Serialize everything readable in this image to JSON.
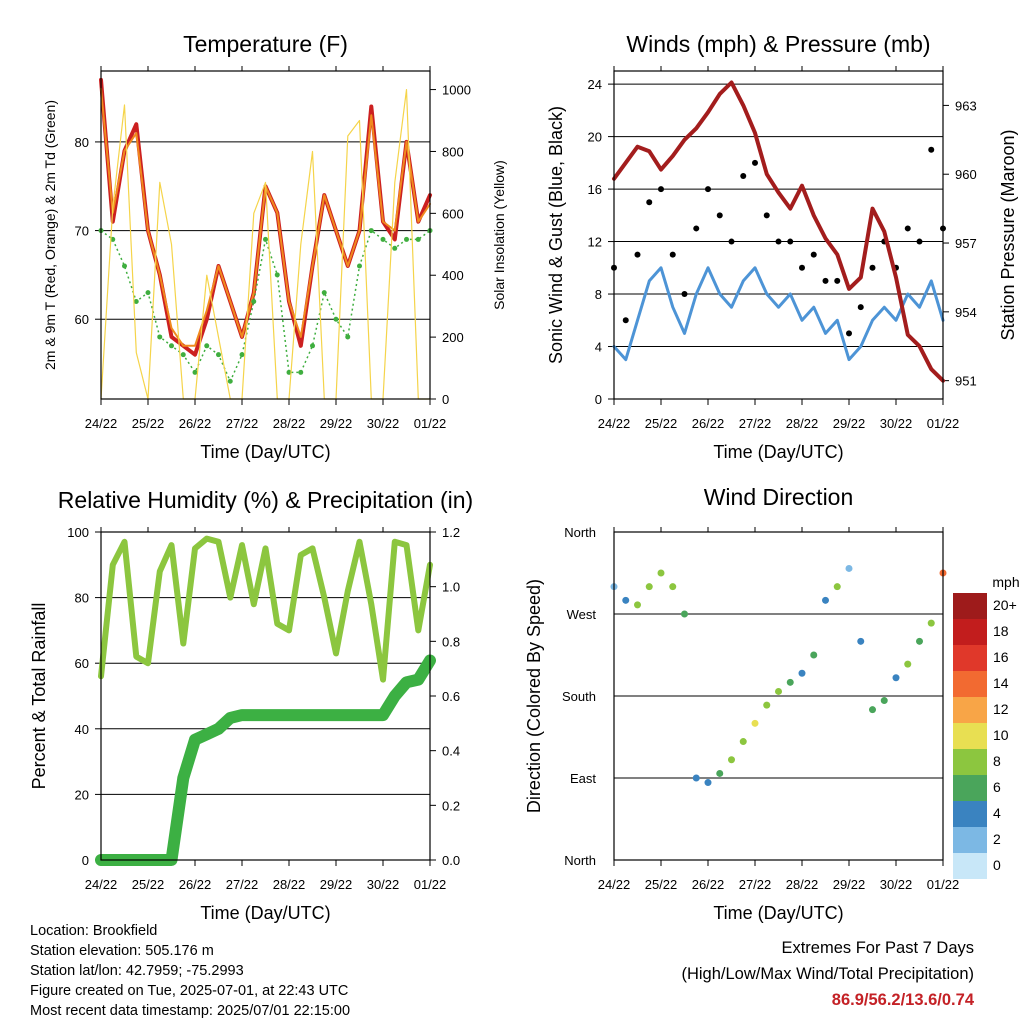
{
  "x_ticks": [
    "24/22",
    "25/22",
    "26/22",
    "27/22",
    "28/22",
    "29/22",
    "30/22",
    "01/22"
  ],
  "x_label": "Time (Day/UTC)",
  "chart_data": [
    {
      "type": "line",
      "title": "Temperature (F)",
      "xlabel": "Time (Day/UTC)",
      "ylabel": "2m & 9m T (Red, Orange) & 2m Td (Green)",
      "ylabel_right": "Solar Insolation (Yellow)",
      "ylim": [
        51,
        88
      ],
      "ylim_right": [
        0,
        1060
      ],
      "yticks": [
        60,
        70,
        80
      ],
      "yticks_right": [
        0,
        200,
        400,
        600,
        800,
        1000
      ],
      "x": [
        0,
        0.25,
        0.5,
        0.75,
        1,
        1.25,
        1.5,
        1.75,
        2,
        2.25,
        2.5,
        2.75,
        3,
        3.25,
        3.5,
        3.75,
        4,
        4.25,
        4.5,
        4.75,
        5,
        5.25,
        5.5,
        5.75,
        6,
        6.25,
        6.5,
        6.75,
        7
      ],
      "series": [
        {
          "name": "2m T",
          "color": "#cc2020",
          "values": [
            87,
            71,
            79,
            82,
            70,
            65,
            58,
            57,
            56,
            60,
            66,
            62,
            58,
            63,
            75,
            72,
            62,
            57,
            66,
            74,
            70,
            66,
            70,
            84,
            71,
            69,
            80,
            71,
            74
          ]
        },
        {
          "name": "9m T",
          "color": "#f08a1e",
          "values": [
            86,
            72,
            79,
            81,
            70,
            65,
            59,
            57,
            57,
            61,
            66,
            62,
            58,
            63,
            75,
            72,
            62,
            58,
            66,
            74,
            70,
            66,
            70,
            83,
            71,
            70,
            80,
            71,
            73
          ]
        },
        {
          "name": "2m Td",
          "color": "#3fae3f",
          "values": [
            70,
            69,
            66,
            62,
            63,
            58,
            57,
            56,
            54,
            57,
            56,
            53,
            56,
            62,
            69,
            65,
            54,
            54,
            57,
            63,
            60,
            58,
            66,
            70,
            69,
            68,
            69,
            69,
            70
          ]
        },
        {
          "name": "Solar Insolation",
          "axis": "right",
          "color": "#f5d44a",
          "values": [
            0,
            620,
            950,
            150,
            0,
            700,
            500,
            0,
            0,
            400,
            200,
            0,
            0,
            600,
            700,
            0,
            0,
            500,
            800,
            0,
            0,
            850,
            900,
            0,
            0,
            700,
            1000,
            0,
            0
          ]
        }
      ]
    },
    {
      "type": "line",
      "title": "Winds (mph) & Pressure (mb)",
      "xlabel": "Time (Day/UTC)",
      "ylabel": "Sonic Wind & Gust (Blue, Black)",
      "ylabel_right": "Station Pressure (Maroon)",
      "ylim": [
        0,
        25
      ],
      "ylim_right": [
        950.2,
        964.5
      ],
      "yticks": [
        0,
        4,
        8,
        12,
        16,
        20,
        24
      ],
      "yticks_right": [
        951,
        954,
        957,
        960,
        963
      ],
      "x": [
        0,
        0.25,
        0.5,
        0.75,
        1,
        1.25,
        1.5,
        1.75,
        2,
        2.25,
        2.5,
        2.75,
        3,
        3.25,
        3.5,
        3.75,
        4,
        4.25,
        4.5,
        4.75,
        5,
        5.25,
        5.5,
        5.75,
        6,
        6.25,
        6.5,
        6.75,
        7
      ],
      "series": [
        {
          "name": "Wind",
          "color": "#4d94d6",
          "values": [
            4,
            3,
            6,
            9,
            10,
            7,
            5,
            8,
            10,
            8,
            7,
            9,
            10,
            8,
            7,
            8,
            6,
            7,
            5,
            6,
            3,
            4,
            6,
            7,
            6,
            8,
            7,
            9,
            6
          ]
        },
        {
          "name": "Gust",
          "color": "#000000",
          "values": [
            10,
            6,
            11,
            15,
            16,
            11,
            8,
            13,
            16,
            14,
            12,
            17,
            18,
            14,
            12,
            12,
            10,
            11,
            9,
            9,
            5,
            7,
            10,
            12,
            10,
            13,
            12,
            19,
            13
          ]
        },
        {
          "name": "Station Pressure",
          "axis": "right",
          "color": "#a31d1d",
          "values": [
            959.8,
            960.5,
            961.2,
            961,
            960.2,
            960.8,
            961.5,
            962,
            962.7,
            963.5,
            964,
            963,
            961.8,
            960,
            959.2,
            958.5,
            959.5,
            958.2,
            957.2,
            956.5,
            955,
            955.5,
            958.5,
            957.5,
            955.5,
            953,
            952.5,
            951.5,
            951
          ]
        }
      ]
    },
    {
      "type": "line",
      "title": "Relative Humidity (%) & Precipitation (in)",
      "xlabel": "Time (Day/UTC)",
      "ylabel": "Percent & Total Rainfall",
      "ylim": [
        0,
        100
      ],
      "ylim_right": [
        0,
        1.2
      ],
      "yticks": [
        0,
        20,
        40,
        60,
        80,
        100
      ],
      "yticks_right": [
        "0.0",
        "0.2",
        "0.4",
        "0.6",
        "0.8",
        "1.0",
        "1.2"
      ],
      "x": [
        0,
        0.25,
        0.5,
        0.75,
        1,
        1.25,
        1.5,
        1.75,
        2,
        2.25,
        2.5,
        2.75,
        3,
        3.25,
        3.5,
        3.75,
        4,
        4.25,
        4.5,
        4.75,
        5,
        5.25,
        5.5,
        5.75,
        6,
        6.25,
        6.5,
        6.75,
        7
      ],
      "series": [
        {
          "name": "Relative Humidity",
          "color": "#8cc63f",
          "values": [
            56,
            90,
            97,
            62,
            60,
            88,
            96,
            66,
            95,
            98,
            97,
            80,
            96,
            78,
            95,
            72,
            70,
            93,
            95,
            80,
            63,
            82,
            97,
            78,
            55,
            97,
            96,
            70,
            90
          ]
        },
        {
          "name": "Total Rainfall",
          "axis": "right",
          "color": "#3cb043",
          "values": [
            0,
            0,
            0,
            0,
            0,
            0,
            0,
            0.3,
            0.44,
            0.46,
            0.48,
            0.52,
            0.53,
            0.53,
            0.53,
            0.53,
            0.53,
            0.53,
            0.53,
            0.53,
            0.53,
            0.53,
            0.53,
            0.53,
            0.53,
            0.6,
            0.65,
            0.66,
            0.73
          ]
        }
      ]
    },
    {
      "type": "scatter",
      "title": "Wind Direction",
      "xlabel": "Time (Day/UTC)",
      "ylabel": "Direction (Colored By Speed)",
      "ylim": [
        0,
        360
      ],
      "yticks": [
        "North",
        "East",
        "South",
        "West",
        "North"
      ],
      "x": [
        0,
        0.25,
        0.5,
        0.75,
        1,
        1.25,
        1.5,
        1.75,
        2,
        2.25,
        2.5,
        2.75,
        3,
        3.25,
        3.5,
        3.75,
        4,
        4.25,
        4.5,
        4.75,
        5,
        5.25,
        5.5,
        5.75,
        6,
        6.25,
        6.5,
        6.75,
        7
      ],
      "values": [
        300,
        285,
        280,
        300,
        315,
        300,
        270,
        90,
        85,
        95,
        110,
        130,
        150,
        170,
        185,
        195,
        205,
        225,
        285,
        300,
        320,
        240,
        165,
        175,
        200,
        215,
        240,
        260,
        315
      ],
      "colorbar": {
        "title": "mph",
        "labels": [
          "20+",
          "18",
          "16",
          "14",
          "12",
          "10",
          "8",
          "6",
          "4",
          "2",
          "0"
        ],
        "colors": [
          "#9e1b1b",
          "#c21d1d",
          "#e0382a",
          "#f26a31",
          "#f8a547",
          "#e8df52",
          "#8cc63f",
          "#4aa55b",
          "#3a83c0",
          "#7cb8e4",
          "#c8e7f8"
        ]
      }
    }
  ],
  "info": {
    "location": "Location: Brookfield",
    "elevation": "Station elevation: 505.176 m",
    "latlon": "Station lat/lon: 42.7959; -75.2993",
    "created": "Figure created on Tue, 2025-07-01, at 22:43 UTC",
    "recent": "Most recent data timestamp: 2025/07/01 22:15:00"
  },
  "extremes": {
    "title": "Extremes For Past 7 Days",
    "subtitle": "(High/Low/Max Wind/Total Precipitation)",
    "values": "86.9/56.2/13.6/0.74"
  }
}
